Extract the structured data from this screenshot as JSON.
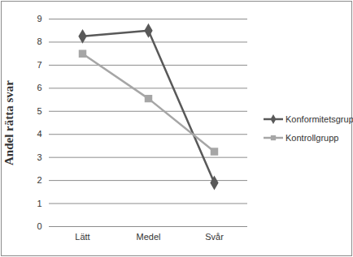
{
  "chart_data": {
    "type": "line",
    "y_label": "Andel rätta svar",
    "categories": [
      "Lätt",
      "Medel",
      "Svår"
    ],
    "series": [
      {
        "name": "Konformitetsgrupp",
        "color": "#595959",
        "marker": "diamond",
        "line_style": "solid",
        "values": [
          8.25,
          8.5,
          1.9
        ]
      },
      {
        "name": "Kontrollgrupp",
        "color": "#a6a6a6",
        "marker": "square",
        "line_style": "solid",
        "values": [
          7.5,
          5.55,
          3.25
        ]
      }
    ],
    "ylim": [
      0,
      9
    ],
    "yticks": [
      0,
      1,
      2,
      3,
      4,
      5,
      6,
      7,
      8,
      9
    ],
    "grid": true,
    "legend": "right"
  }
}
